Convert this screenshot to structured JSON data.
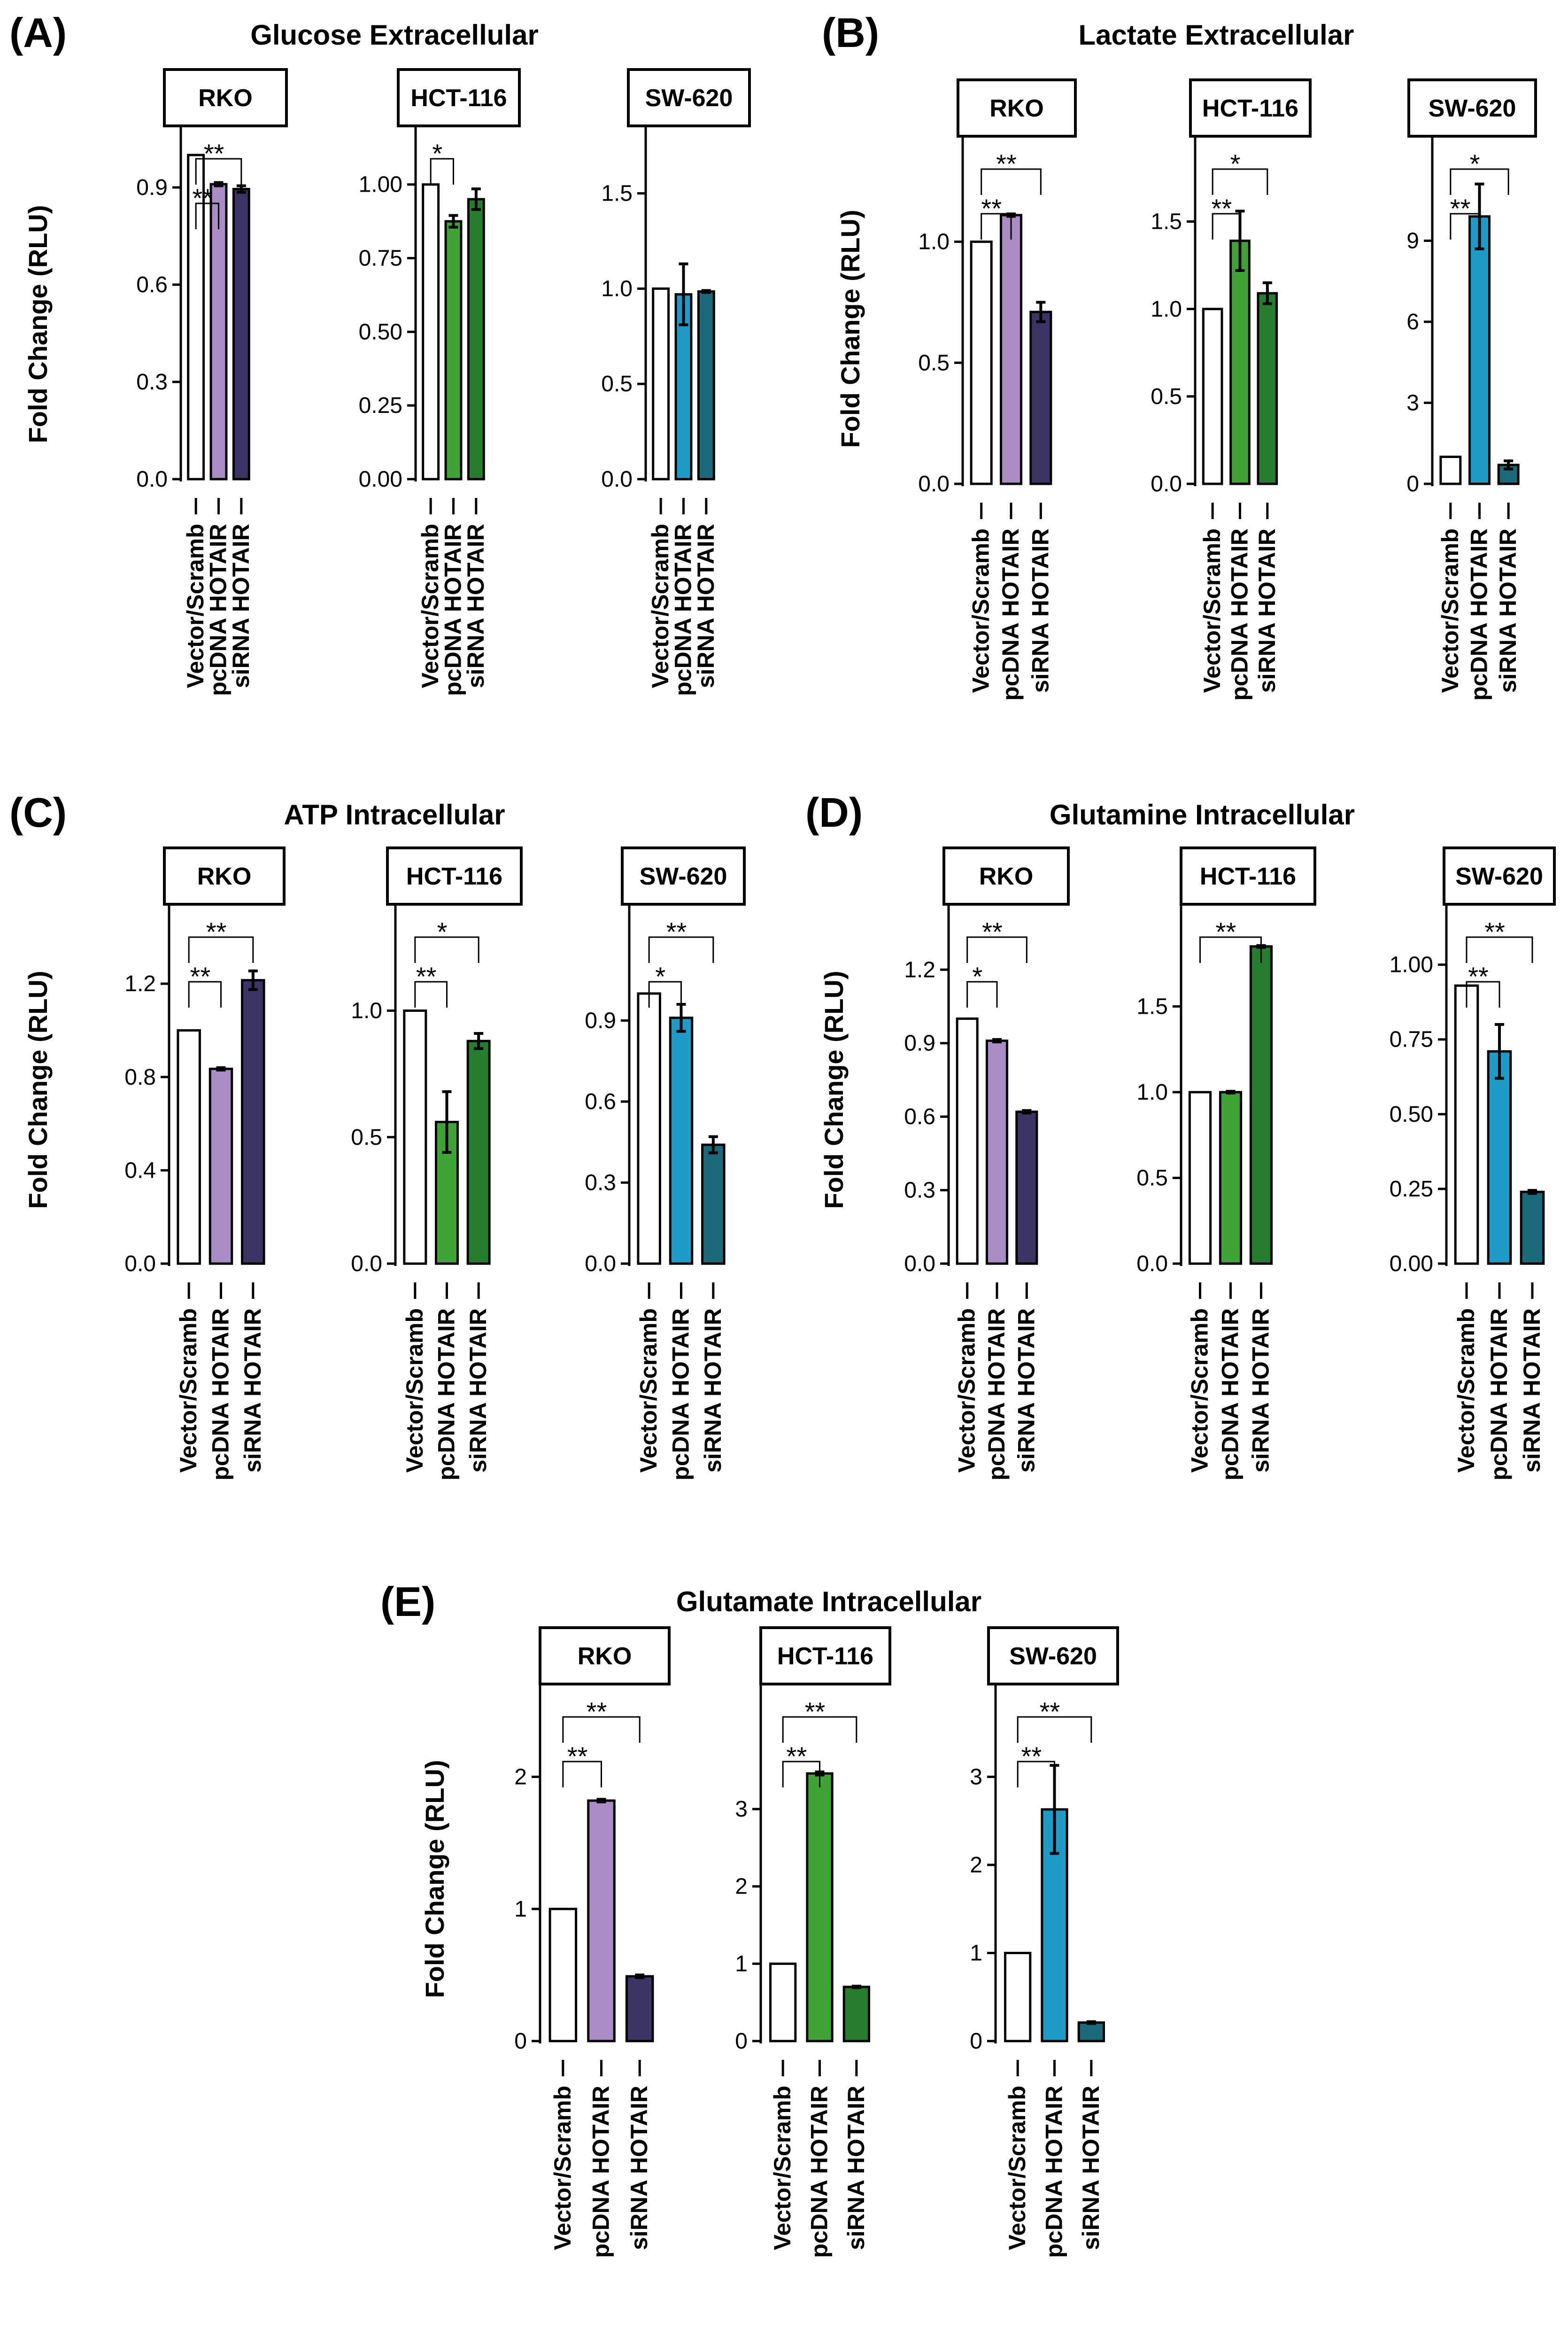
{
  "categories": [
    "Vector/Scramb",
    "pcDNA HOTAIR",
    "siRNA HOTAIR"
  ],
  "ylabel": "Fold Change (RLU)",
  "colors": {
    "vector": "#ffffff",
    "rko_pc": "#a98bc6",
    "rko_si": "#3d3466",
    "hct_pc": "#3fa435",
    "hct_si": "#267d2e",
    "sw_pc": "#1e9bc6",
    "sw_si": "#1a6a7c"
  },
  "chart_data": [
    {
      "type": "bar",
      "label": "(A)",
      "title": "Glucose Extracellular",
      "facets": [
        {
          "name": "RKO",
          "ylim": [
            0,
            1.0
          ],
          "ticks": [
            "0.0",
            "0.3",
            "0.6",
            "0.9"
          ],
          "values": [
            1.0,
            0.91,
            0.895
          ],
          "errors": [
            0,
            0.005,
            0.01
          ],
          "colors": [
            "#ffffff",
            "#a98bc6",
            "#3d3466"
          ],
          "sig": [
            {
              "from": 0,
              "to": 2,
              "label": "**"
            },
            {
              "from": 0,
              "to": 1,
              "label": "**"
            }
          ]
        },
        {
          "name": "HCT-116",
          "ylim": [
            0,
            1.1
          ],
          "ticks": [
            "0.00",
            "0.25",
            "0.50",
            "0.75",
            "1.00"
          ],
          "values": [
            1.0,
            0.875,
            0.95
          ],
          "errors": [
            0,
            0.02,
            0.035
          ],
          "colors": [
            "#ffffff",
            "#3fa435",
            "#267d2e"
          ],
          "sig": [
            {
              "from": 0,
              "to": 1,
              "label": "*"
            }
          ]
        },
        {
          "name": "SW-620",
          "ylim": [
            0,
            1.8
          ],
          "ticks": [
            "0.0",
            "0.5",
            "1.0",
            "1.5"
          ],
          "values": [
            1.0,
            0.97,
            0.985
          ],
          "errors": [
            0,
            0.16,
            0.005
          ],
          "colors": [
            "#ffffff",
            "#1e9bc6",
            "#1a6a7c"
          ],
          "sig": []
        }
      ]
    },
    {
      "type": "bar",
      "label": "(B)",
      "title": "Lactate Extracellular",
      "facets": [
        {
          "name": "RKO",
          "ylim": [
            0,
            1.3
          ],
          "ticks": [
            "0.0",
            "0.5",
            "1.0"
          ],
          "values": [
            1.0,
            1.11,
            0.71
          ],
          "errors": [
            0,
            0.005,
            0.04
          ],
          "colors": [
            "#ffffff",
            "#a98bc6",
            "#3d3466"
          ],
          "sig": [
            {
              "from": 0,
              "to": 2,
              "label": "**"
            },
            {
              "from": 0,
              "to": 1,
              "label": "**"
            }
          ]
        },
        {
          "name": "HCT-116",
          "ylim": [
            0,
            1.8
          ],
          "ticks": [
            "0.0",
            "0.5",
            "1.0",
            "1.5"
          ],
          "values": [
            1.0,
            1.39,
            1.09
          ],
          "errors": [
            0,
            0.17,
            0.06
          ],
          "colors": [
            "#ffffff",
            "#3fa435",
            "#267d2e"
          ],
          "sig": [
            {
              "from": 0,
              "to": 2,
              "label": "*"
            },
            {
              "from": 0,
              "to": 1,
              "label": "**"
            }
          ]
        },
        {
          "name": "SW-620",
          "ylim": [
            0,
            12
          ],
          "ticks": [
            "0",
            "3",
            "6",
            "9"
          ],
          "values": [
            1.0,
            9.9,
            0.7
          ],
          "errors": [
            0,
            1.2,
            0.15
          ],
          "colors": [
            "#ffffff",
            "#1e9bc6",
            "#1a6a7c"
          ],
          "sig": [
            {
              "from": 0,
              "to": 2,
              "label": "*"
            },
            {
              "from": 0,
              "to": 1,
              "label": "**"
            }
          ]
        }
      ]
    },
    {
      "type": "bar",
      "label": "(C)",
      "title": "ATP Intracellular",
      "facets": [
        {
          "name": "RKO",
          "ylim": [
            0,
            1.45
          ],
          "ticks": [
            "0.0",
            "0.4",
            "0.8",
            "1.2"
          ],
          "values": [
            1.0,
            0.835,
            1.215
          ],
          "errors": [
            0,
            0.005,
            0.04
          ],
          "colors": [
            "#ffffff",
            "#a98bc6",
            "#3d3466"
          ],
          "sig": [
            {
              "from": 0,
              "to": 2,
              "label": "**"
            },
            {
              "from": 0,
              "to": 1,
              "label": "**"
            }
          ]
        },
        {
          "name": "HCT-116",
          "ylim": [
            0,
            1.3
          ],
          "ticks": [
            "0.0",
            "0.5",
            "1.0"
          ],
          "values": [
            1.0,
            0.56,
            0.88
          ],
          "errors": [
            0,
            0.12,
            0.03
          ],
          "colors": [
            "#ffffff",
            "#3fa435",
            "#267d2e"
          ],
          "sig": [
            {
              "from": 0,
              "to": 2,
              "label": "*"
            },
            {
              "from": 0,
              "to": 1,
              "label": "**"
            }
          ]
        },
        {
          "name": "SW-620",
          "ylim": [
            0,
            1.2
          ],
          "ticks": [
            "0.0",
            "0.3",
            "0.6",
            "0.9"
          ],
          "values": [
            1.0,
            0.91,
            0.44
          ],
          "errors": [
            0,
            0.05,
            0.03
          ],
          "colors": [
            "#ffffff",
            "#1e9bc6",
            "#1a6a7c"
          ],
          "sig": [
            {
              "from": 0,
              "to": 2,
              "label": "**"
            },
            {
              "from": 0,
              "to": 1,
              "label": "*"
            }
          ]
        }
      ]
    },
    {
      "type": "bar",
      "label": "(D)",
      "title": "Glutamine Intracellular",
      "facets": [
        {
          "name": "RKO",
          "ylim": [
            0,
            1.4
          ],
          "ticks": [
            "0.0",
            "0.3",
            "0.6",
            "0.9",
            "1.2"
          ],
          "values": [
            1.0,
            0.91,
            0.62
          ],
          "errors": [
            0,
            0.005,
            0.005
          ],
          "colors": [
            "#ffffff",
            "#a98bc6",
            "#3d3466"
          ],
          "sig": [
            {
              "from": 0,
              "to": 2,
              "label": "**"
            },
            {
              "from": 0,
              "to": 1,
              "label": "*"
            }
          ]
        },
        {
          "name": "HCT-116",
          "ylim": [
            0,
            2.0
          ],
          "ticks": [
            "0.0",
            "0.5",
            "1.0",
            "1.5"
          ],
          "values": [
            1.0,
            1.0,
            1.85
          ],
          "errors": [
            0,
            0.005,
            0.005
          ],
          "colors": [
            "#ffffff",
            "#3fa435",
            "#267d2e"
          ],
          "sig": [
            {
              "from": 0,
              "to": 2,
              "label": "**"
            }
          ]
        },
        {
          "name": "SW-620",
          "ylim": [
            0,
            1.1
          ],
          "ticks": [
            "0.00",
            "0.25",
            "0.50",
            "0.75",
            "1.00"
          ],
          "values": [
            0.93,
            0.71,
            0.24
          ],
          "errors": [
            0,
            0.09,
            0.005
          ],
          "colors": [
            "#ffffff",
            "#1e9bc6",
            "#1a6a7c"
          ],
          "sig": [
            {
              "from": 0,
              "to": 2,
              "label": "**"
            },
            {
              "from": 0,
              "to": 1,
              "label": "**"
            }
          ]
        }
      ]
    },
    {
      "type": "bar",
      "label": "(E)",
      "title": "Glutamate Intracellular",
      "facets": [
        {
          "name": "RKO",
          "ylim": [
            0,
            2.4
          ],
          "ticks": [
            "0",
            "1",
            "2"
          ],
          "values": [
            1.0,
            1.82,
            0.49
          ],
          "errors": [
            0,
            0.01,
            0.01
          ],
          "colors": [
            "#ffffff",
            "#a98bc6",
            "#3d3466"
          ],
          "sig": [
            {
              "from": 0,
              "to": 2,
              "label": "**"
            },
            {
              "from": 0,
              "to": 1,
              "label": "**"
            }
          ]
        },
        {
          "name": "HCT-116",
          "ylim": [
            0,
            4.1
          ],
          "ticks": [
            "0",
            "1",
            "2",
            "3"
          ],
          "values": [
            1.0,
            3.46,
            0.7
          ],
          "errors": [
            0,
            0.02,
            0.01
          ],
          "colors": [
            "#ffffff",
            "#3fa435",
            "#267d2e"
          ],
          "sig": [
            {
              "from": 0,
              "to": 2,
              "label": "**"
            },
            {
              "from": 0,
              "to": 1,
              "label": "**"
            }
          ]
        },
        {
          "name": "SW-620",
          "ylim": [
            0,
            3.6
          ],
          "ticks": [
            "0",
            "1",
            "2",
            "3"
          ],
          "values": [
            1.0,
            2.63,
            0.21
          ],
          "errors": [
            0,
            0.5,
            0.01
          ],
          "colors": [
            "#ffffff",
            "#1e9bc6",
            "#1a6a7c"
          ],
          "sig": [
            {
              "from": 0,
              "to": 2,
              "label": "**"
            },
            {
              "from": 0,
              "to": 1,
              "label": "**"
            }
          ]
        }
      ]
    }
  ]
}
